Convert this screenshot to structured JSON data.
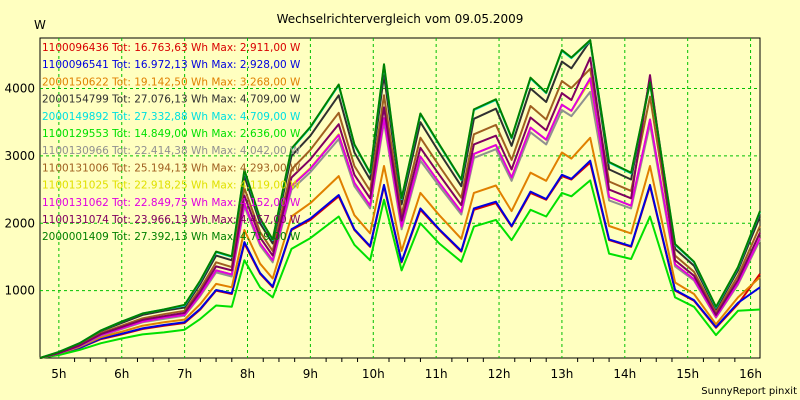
{
  "chart_data": {
    "type": "line",
    "title": "Wechselrichtervergleich vom 09.05.2009",
    "ylabel": "W",
    "footer": "SunnyReport pinxit",
    "ylim": [
      0,
      4750
    ],
    "xlim": [
      4.7,
      16.15
    ],
    "yticks": [
      1000,
      2000,
      3000,
      4000
    ],
    "xticks": [
      {
        "value": 5,
        "label": "5h"
      },
      {
        "value": 6,
        "label": "6h"
      },
      {
        "value": 7,
        "label": "7h"
      },
      {
        "value": 8,
        "label": "8h"
      },
      {
        "value": 9,
        "label": "9h"
      },
      {
        "value": 10,
        "label": "10h"
      },
      {
        "value": 11,
        "label": "11h"
      },
      {
        "value": 12,
        "label": "12h"
      },
      {
        "value": 13,
        "label": "13h"
      },
      {
        "value": 14,
        "label": "14h"
      },
      {
        "value": 15,
        "label": "15h"
      },
      {
        "value": 16,
        "label": "16h"
      }
    ],
    "grid": true,
    "legend_position": "top-left",
    "x": [
      4.7,
      5.0,
      5.33,
      5.67,
      6.0,
      6.33,
      6.67,
      7.0,
      7.25,
      7.5,
      7.75,
      7.95,
      8.2,
      8.4,
      8.7,
      9.0,
      9.45,
      9.7,
      9.95,
      10.17,
      10.45,
      10.75,
      11.05,
      11.4,
      11.6,
      11.95,
      12.2,
      12.5,
      12.75,
      13.0,
      13.15,
      13.45,
      13.75,
      14.1,
      14.4,
      14.8,
      15.1,
      15.45,
      15.8,
      16.15
    ],
    "series": [
      {
        "id": "1100096436",
        "label": "1100096436 Tot: 16.763,63 Wh Max: 2.911,00 W",
        "color": "#d80000",
        "values": [
          0,
          60,
          150,
          280,
          350,
          430,
          480,
          520,
          720,
          1000,
          950,
          1700,
          1250,
          1050,
          1900,
          2050,
          2400,
          1900,
          1650,
          2550,
          1420,
          2200,
          1900,
          1580,
          2200,
          2300,
          1950,
          2450,
          2350,
          2700,
          2650,
          2900,
          1750,
          1650,
          2550,
          1000,
          850,
          450,
          800,
          1250
        ]
      },
      {
        "id": "1100096541",
        "label": "1100096541 Tot: 16.972,13 Wh Max: 2.928,00 W",
        "color": "#0000e0",
        "values": [
          0,
          60,
          150,
          290,
          360,
          440,
          490,
          530,
          730,
          1010,
          960,
          1720,
          1260,
          1060,
          1910,
          2070,
          2420,
          1910,
          1660,
          2570,
          1430,
          2220,
          1910,
          1590,
          2220,
          2320,
          1960,
          2470,
          2360,
          2720,
          2660,
          2928,
          1760,
          1660,
          2570,
          1010,
          860,
          460,
          820,
          1050
        ]
      },
      {
        "id": "2000150622",
        "label": "2000150622 Tot: 19.142,50 Wh Max: 3.268,00 W",
        "color": "#e08000",
        "values": [
          0,
          65,
          165,
          310,
          390,
          480,
          530,
          570,
          800,
          1100,
          1050,
          1900,
          1400,
          1180,
          2100,
          2300,
          2700,
          2120,
          1850,
          2850,
          1590,
          2450,
          2120,
          1770,
          2450,
          2560,
          2180,
          2750,
          2630,
          3050,
          2960,
          3268,
          1960,
          1850,
          2850,
          1120,
          950,
          500,
          900,
          1200
        ]
      },
      {
        "id": "2000154799",
        "label": "2000154799 Tot: 27.076,13 Wh Max: 4.709,00 W",
        "color": "#303030",
        "values": [
          0,
          80,
          210,
          400,
          520,
          640,
          700,
          750,
          1100,
          1520,
          1450,
          2700,
          2000,
          1700,
          3000,
          3300,
          3900,
          3050,
          2650,
          4200,
          2280,
          3500,
          3050,
          2550,
          3550,
          3700,
          3150,
          4000,
          3800,
          4400,
          4300,
          4709,
          2800,
          2650,
          4150,
          1620,
          1370,
          720,
          1300,
          2100
        ]
      },
      {
        "id": "2000149892",
        "label": "2000149892 Tot: 27.332,88 Wh Max: 4.709,00 W",
        "color": "#00e0e0",
        "values": [
          0,
          90,
          220,
          410,
          540,
          660,
          720,
          780,
          1140,
          1570,
          1500,
          2780,
          2060,
          1750,
          3100,
          3420,
          4050,
          3160,
          2740,
          4350,
          2360,
          3620,
          3160,
          2640,
          3680,
          3830,
          3260,
          4150,
          3930,
          4560,
          4450,
          4709,
          2900,
          2740,
          4080,
          1680,
          1420,
          750,
          1340,
          2170
        ]
      },
      {
        "id": "1100129553",
        "label": "1100129553 Tot: 14.849,00 Wh Max: 2.636,00 W",
        "color": "#00e000",
        "values": [
          0,
          45,
          120,
          220,
          290,
          350,
          380,
          420,
          580,
          780,
          760,
          1450,
          1050,
          900,
          1620,
          1780,
          2100,
          1680,
          1450,
          2350,
          1300,
          2000,
          1700,
          1430,
          1950,
          2050,
          1750,
          2200,
          2100,
          2450,
          2400,
          2636,
          1550,
          1470,
          2100,
          900,
          760,
          340,
          700,
          720
        ]
      },
      {
        "id": "1100130966",
        "label": "1100130966 Tot: 22.414,38 Wh Max: 4.042,00 W",
        "color": "#909090",
        "values": [
          0,
          70,
          175,
          330,
          430,
          530,
          580,
          630,
          920,
          1270,
          1210,
          2250,
          1670,
          1420,
          2500,
          2760,
          3250,
          2550,
          2220,
          3500,
          1910,
          2930,
          2550,
          2130,
          2970,
          3100,
          2630,
          3350,
          3170,
          3680,
          3590,
          3950,
          2340,
          2220,
          3470,
          1360,
          1150,
          600,
          1090,
          1750
        ]
      },
      {
        "id": "1100131006",
        "label": "1100131006 Tot: 25.194,13 Wh Max: 4.293,00 W",
        "color": "#a06020",
        "values": [
          0,
          75,
          190,
          370,
          480,
          590,
          650,
          700,
          1030,
          1420,
          1350,
          2520,
          1870,
          1590,
          2800,
          3090,
          3640,
          2850,
          2480,
          3900,
          2130,
          3270,
          2850,
          2380,
          3320,
          3460,
          2940,
          3740,
          3540,
          4110,
          4010,
          4293,
          2620,
          2480,
          3880,
          1520,
          1280,
          670,
          1220,
          1960
        ]
      },
      {
        "id": "1100131025",
        "label": "1100131025 Tot: 22.918,25 Wh Max: 4.119,00 W",
        "color": "#e0e000",
        "values": [
          0,
          70,
          180,
          340,
          440,
          540,
          600,
          640,
          940,
          1300,
          1240,
          2300,
          1700,
          1450,
          2560,
          2820,
          3320,
          2600,
          2260,
          3560,
          1950,
          2990,
          2600,
          2170,
          3030,
          3160,
          2680,
          3420,
          3240,
          3760,
          3670,
          4119,
          2390,
          2260,
          3540,
          1390,
          1170,
          610,
          1110,
          1780
        ]
      },
      {
        "id": "1100131062",
        "label": "1100131062 Tot: 22.849,75 Wh Max: 4.152,00 W",
        "color": "#e000e0",
        "values": [
          0,
          70,
          180,
          340,
          440,
          540,
          600,
          640,
          940,
          1300,
          1240,
          2290,
          1700,
          1450,
          2550,
          2810,
          3310,
          2600,
          2260,
          3560,
          1950,
          2990,
          2600,
          2170,
          3030,
          3160,
          2680,
          3420,
          3240,
          3760,
          3670,
          4152,
          2390,
          2260,
          3540,
          1390,
          1170,
          610,
          1110,
          1780
        ]
      },
      {
        "id": "1100131074",
        "label": "1100131074 Tot: 23.966,13 Wh Max: 4.457,00 W",
        "color": "#800060",
        "values": [
          0,
          72,
          185,
          355,
          460,
          565,
          620,
          670,
          985,
          1360,
          1300,
          2410,
          1790,
          1520,
          2680,
          2950,
          3470,
          2720,
          2370,
          3720,
          2040,
          3120,
          2720,
          2270,
          3170,
          3300,
          2800,
          3570,
          3380,
          3930,
          3830,
          4457,
          2500,
          2370,
          4200,
          1450,
          1220,
          640,
          1160,
          1860
        ]
      },
      {
        "id": "2000001409",
        "label": "2000001409 Tot: 27.392,13 Wh Max: 4.719,00 W",
        "color": "#008000",
        "values": [
          0,
          90,
          220,
          410,
          540,
          660,
          720,
          790,
          1150,
          1580,
          1510,
          2790,
          2070,
          1760,
          3110,
          3430,
          4060,
          3170,
          2750,
          4360,
          2370,
          3630,
          3170,
          2650,
          3690,
          3840,
          3270,
          4160,
          3940,
          4570,
          4460,
          4719,
          2910,
          2750,
          4090,
          1690,
          1430,
          760,
          1350,
          2180
        ]
      }
    ]
  }
}
